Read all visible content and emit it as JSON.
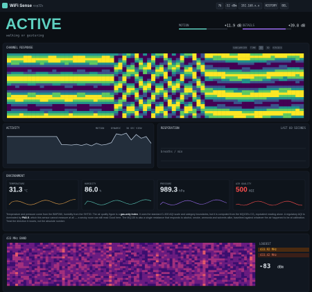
{
  "header": {
    "title": "WiFi Sense",
    "device": "esp32s",
    "badges": [
      "76",
      "-52 dBm",
      "192.168.x.x",
      "HISTORY",
      "BEL"
    ]
  },
  "status": {
    "state": "ACTIVE",
    "description": "walking or gesturing",
    "meters": [
      {
        "label": "MOTION",
        "value": "+11.9 dB"
      },
      {
        "label": "DETAILS",
        "value": "+39.8 dB"
      }
    ]
  },
  "channel": {
    "title": "CHANNEL RESPONSE",
    "controls": [
      "SUBCARRIER",
      "TIME",
      "2D",
      "3D",
      "VIRIDIS"
    ]
  },
  "activity": {
    "title": "ACTIVITY",
    "legend": [
      "MOTION",
      "DYNAMIC",
      "30 SEC VIEW"
    ],
    "values": [
      80,
      80,
      80,
      80,
      80,
      80,
      80,
      80,
      80,
      80,
      80,
      56,
      56,
      55,
      57,
      54,
      58,
      53,
      60,
      55,
      57,
      62,
      88,
      85,
      90,
      70,
      86,
      75,
      80,
      60
    ]
  },
  "respiration": {
    "title": "RESPIRATION",
    "range": "LAST 60 SECONDS",
    "unit": "breaths / min"
  },
  "environment": {
    "title": "ENVIRONMENT",
    "cards": [
      {
        "label": "TEMPERATURE",
        "value": "31.3",
        "unit": "°C"
      },
      {
        "label": "HUMIDITY",
        "value": "86.0",
        "unit": "%"
      },
      {
        "label": "PRESSURE",
        "value": "989.3",
        "unit": "hPa"
      },
      {
        "label": "AIR QUALITY",
        "value": "500",
        "unit": "AQI"
      }
    ],
    "note": [
      "Temperature and pressure come from the BMP280, humidity from the SHT30. The air quality figure is a ",
      "gas-only index",
      ". It uses the standard 0–500 AQI scale and category boundaries, but it is computed from the MQ135's CO₂ equivalent reading alone. A regulatory AQI is dominated by ",
      "PM2.5",
      ", which this sensor cannot measure at all — a smoky room can still read Good here. The MQ135 is also a single resistance that responds to alcohol, smoke, ammonia and solvents alike, baselined against whatever the air happened to be at calibration. Treat the direction it moves, not the absolute number."
    ]
  },
  "band": {
    "title": "433 MHz BAND",
    "list_title": "LOUDEST",
    "peaks": [
      "433.92 MHz",
      "433.42 MHz"
    ],
    "level": "-83",
    "level_unit": "dBm"
  }
}
